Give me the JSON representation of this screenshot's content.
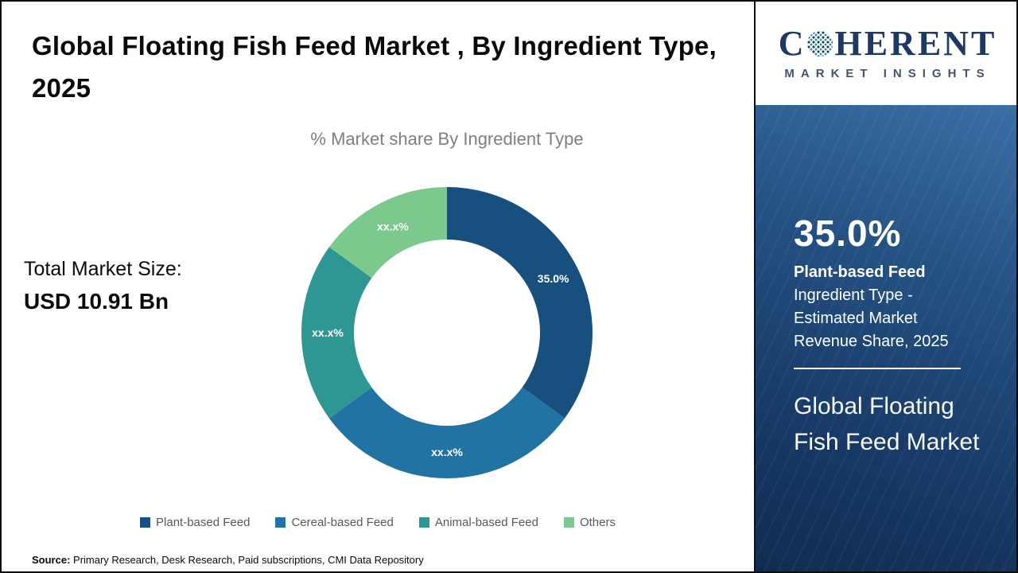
{
  "header": {
    "title": "Global Floating Fish Feed Market , By Ingredient Type, 2025"
  },
  "chart_data": {
    "type": "pie",
    "donut": true,
    "title": "% Market share By Ingredient Type",
    "categories": [
      "Plant-based Feed",
      "Cereal-based Feed",
      "Animal-based Feed",
      "Others"
    ],
    "values": [
      35.0,
      30.0,
      20.0,
      15.0
    ],
    "display_labels": [
      "35.0%",
      "xx.x%",
      "xx.x%",
      "xx.x%"
    ],
    "colors": [
      "#17507E",
      "#2173A3",
      "#2E9793",
      "#7BC98C"
    ],
    "legend_position": "bottom"
  },
  "market": {
    "total_label": "Total Market Size:",
    "total_value": "USD 10.91 Bn"
  },
  "source": {
    "label": "Source:",
    "text": " Primary Research, Desk Research, Paid subscriptions, CMI Data Repository"
  },
  "panel": {
    "logo": {
      "part1": "C",
      "part2": "HERENT",
      "subtitle": "MARKET INSIGHTS"
    },
    "stat_value": "35.0%",
    "stat_title": "Plant-based Feed",
    "stat_desc": " Ingredient Type - Estimated Market Revenue Share, 2025",
    "title": "Global Floating Fish Feed Market",
    "colors": {
      "panel_bg": "#1d4374",
      "logo_navy": "#1e3a63",
      "text": "#ffffff"
    }
  }
}
